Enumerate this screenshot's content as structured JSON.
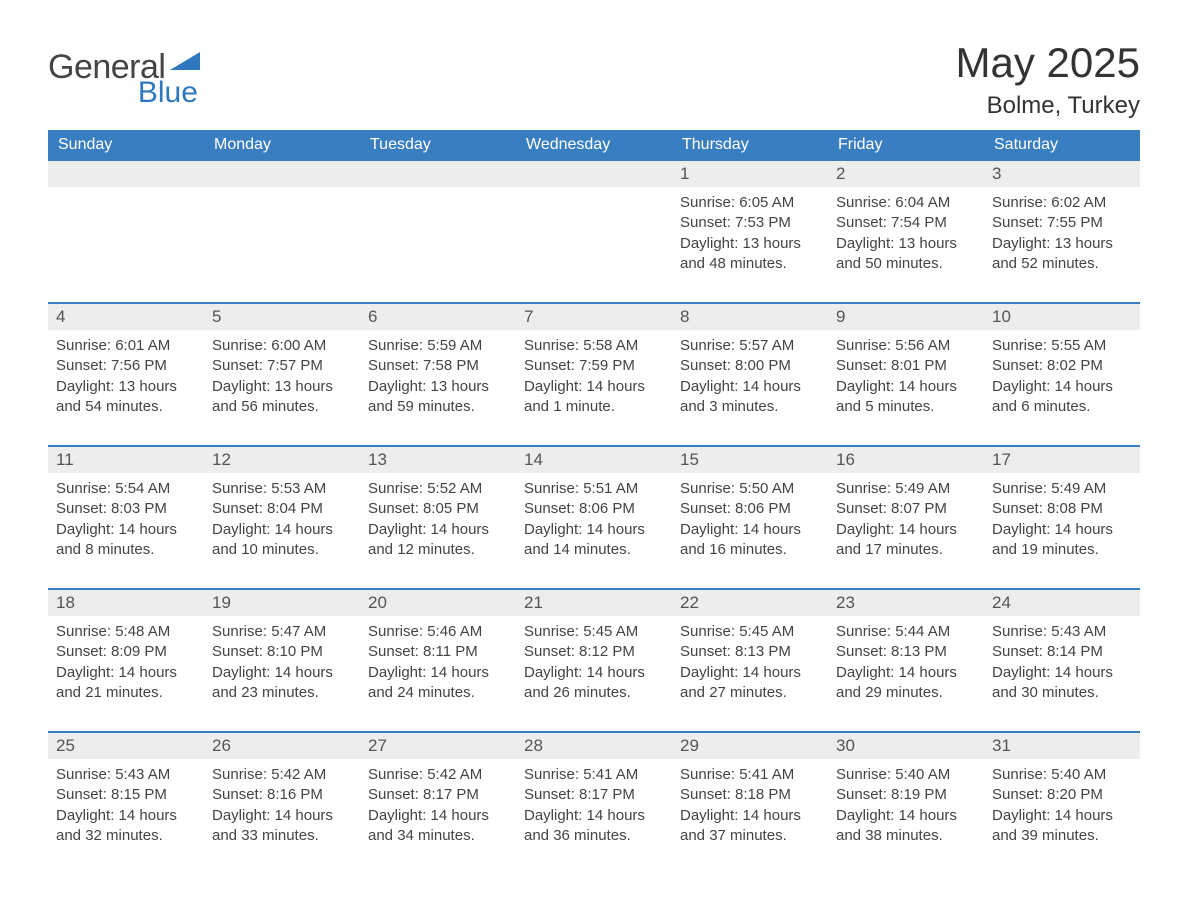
{
  "brand": {
    "part1": "General",
    "part2": "Blue"
  },
  "title": {
    "month": "May 2025",
    "location": "Bolme, Turkey"
  },
  "colors": {
    "header_bg": "#3a7ec2",
    "header_text": "#ffffff",
    "daynum_bg": "#ededed",
    "body_text": "#444444",
    "rule": "#3a7ec2",
    "logo_blue": "#2f78bf",
    "logo_gray": "#444444"
  },
  "typography": {
    "title_fontsize_pt": 32,
    "location_fontsize_pt": 18,
    "dow_fontsize_pt": 12,
    "daynum_fontsize_pt": 13,
    "detail_fontsize_pt": 11
  },
  "dow": [
    "Sunday",
    "Monday",
    "Tuesday",
    "Wednesday",
    "Thursday",
    "Friday",
    "Saturday"
  ],
  "labels": {
    "sunrise": "Sunrise:",
    "sunset": "Sunset:",
    "daylight": "Daylight:"
  },
  "weeks": [
    [
      null,
      null,
      null,
      null,
      {
        "n": "1",
        "sr": "6:05 AM",
        "ss": "7:53 PM",
        "dl": "13 hours and 48 minutes."
      },
      {
        "n": "2",
        "sr": "6:04 AM",
        "ss": "7:54 PM",
        "dl": "13 hours and 50 minutes."
      },
      {
        "n": "3",
        "sr": "6:02 AM",
        "ss": "7:55 PM",
        "dl": "13 hours and 52 minutes."
      }
    ],
    [
      {
        "n": "4",
        "sr": "6:01 AM",
        "ss": "7:56 PM",
        "dl": "13 hours and 54 minutes."
      },
      {
        "n": "5",
        "sr": "6:00 AM",
        "ss": "7:57 PM",
        "dl": "13 hours and 56 minutes."
      },
      {
        "n": "6",
        "sr": "5:59 AM",
        "ss": "7:58 PM",
        "dl": "13 hours and 59 minutes."
      },
      {
        "n": "7",
        "sr": "5:58 AM",
        "ss": "7:59 PM",
        "dl": "14 hours and 1 minute."
      },
      {
        "n": "8",
        "sr": "5:57 AM",
        "ss": "8:00 PM",
        "dl": "14 hours and 3 minutes."
      },
      {
        "n": "9",
        "sr": "5:56 AM",
        "ss": "8:01 PM",
        "dl": "14 hours and 5 minutes."
      },
      {
        "n": "10",
        "sr": "5:55 AM",
        "ss": "8:02 PM",
        "dl": "14 hours and 6 minutes."
      }
    ],
    [
      {
        "n": "11",
        "sr": "5:54 AM",
        "ss": "8:03 PM",
        "dl": "14 hours and 8 minutes."
      },
      {
        "n": "12",
        "sr": "5:53 AM",
        "ss": "8:04 PM",
        "dl": "14 hours and 10 minutes."
      },
      {
        "n": "13",
        "sr": "5:52 AM",
        "ss": "8:05 PM",
        "dl": "14 hours and 12 minutes."
      },
      {
        "n": "14",
        "sr": "5:51 AM",
        "ss": "8:06 PM",
        "dl": "14 hours and 14 minutes."
      },
      {
        "n": "15",
        "sr": "5:50 AM",
        "ss": "8:06 PM",
        "dl": "14 hours and 16 minutes."
      },
      {
        "n": "16",
        "sr": "5:49 AM",
        "ss": "8:07 PM",
        "dl": "14 hours and 17 minutes."
      },
      {
        "n": "17",
        "sr": "5:49 AM",
        "ss": "8:08 PM",
        "dl": "14 hours and 19 minutes."
      }
    ],
    [
      {
        "n": "18",
        "sr": "5:48 AM",
        "ss": "8:09 PM",
        "dl": "14 hours and 21 minutes."
      },
      {
        "n": "19",
        "sr": "5:47 AM",
        "ss": "8:10 PM",
        "dl": "14 hours and 23 minutes."
      },
      {
        "n": "20",
        "sr": "5:46 AM",
        "ss": "8:11 PM",
        "dl": "14 hours and 24 minutes."
      },
      {
        "n": "21",
        "sr": "5:45 AM",
        "ss": "8:12 PM",
        "dl": "14 hours and 26 minutes."
      },
      {
        "n": "22",
        "sr": "5:45 AM",
        "ss": "8:13 PM",
        "dl": "14 hours and 27 minutes."
      },
      {
        "n": "23",
        "sr": "5:44 AM",
        "ss": "8:13 PM",
        "dl": "14 hours and 29 minutes."
      },
      {
        "n": "24",
        "sr": "5:43 AM",
        "ss": "8:14 PM",
        "dl": "14 hours and 30 minutes."
      }
    ],
    [
      {
        "n": "25",
        "sr": "5:43 AM",
        "ss": "8:15 PM",
        "dl": "14 hours and 32 minutes."
      },
      {
        "n": "26",
        "sr": "5:42 AM",
        "ss": "8:16 PM",
        "dl": "14 hours and 33 minutes."
      },
      {
        "n": "27",
        "sr": "5:42 AM",
        "ss": "8:17 PM",
        "dl": "14 hours and 34 minutes."
      },
      {
        "n": "28",
        "sr": "5:41 AM",
        "ss": "8:17 PM",
        "dl": "14 hours and 36 minutes."
      },
      {
        "n": "29",
        "sr": "5:41 AM",
        "ss": "8:18 PM",
        "dl": "14 hours and 37 minutes."
      },
      {
        "n": "30",
        "sr": "5:40 AM",
        "ss": "8:19 PM",
        "dl": "14 hours and 38 minutes."
      },
      {
        "n": "31",
        "sr": "5:40 AM",
        "ss": "8:20 PM",
        "dl": "14 hours and 39 minutes."
      }
    ]
  ]
}
